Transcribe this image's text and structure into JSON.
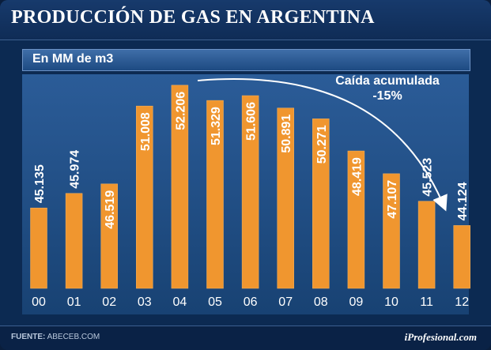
{
  "title": "PRODUCCIÓN DE GAS EN ARGENTINA",
  "unit_label": "En MM de m3",
  "annotation": {
    "line1": "Caída acumulada",
    "line2": "-15%"
  },
  "footer": {
    "source_key": "FUENTE:",
    "source_value": "ABECEB.COM",
    "brand": "iProfesional.com"
  },
  "colors": {
    "bar": "#f0962f",
    "bar_edge": "#f7b45f",
    "label": "#ffffff"
  },
  "chart_data": {
    "type": "bar",
    "title": "PRODUCCIÓN DE GAS EN ARGENTINA",
    "ylabel": "En MM de m3",
    "categories": [
      "00",
      "01",
      "02",
      "03",
      "04",
      "05",
      "06",
      "07",
      "08",
      "09",
      "10",
      "11",
      "12"
    ],
    "values": [
      45.135,
      45.974,
      46.519,
      51.008,
      52.206,
      51.329,
      51.606,
      50.891,
      50.271,
      48.419,
      47.107,
      45.523,
      44.124
    ],
    "labels": [
      "45.135",
      "45.974",
      "46.519",
      "51.008",
      "52.206",
      "51.329",
      "51.606",
      "50.891",
      "50.271",
      "48.419",
      "47.107",
      "45.523",
      "44.124"
    ],
    "ylim": [
      40.5,
      52.7
    ],
    "grid": false
  }
}
